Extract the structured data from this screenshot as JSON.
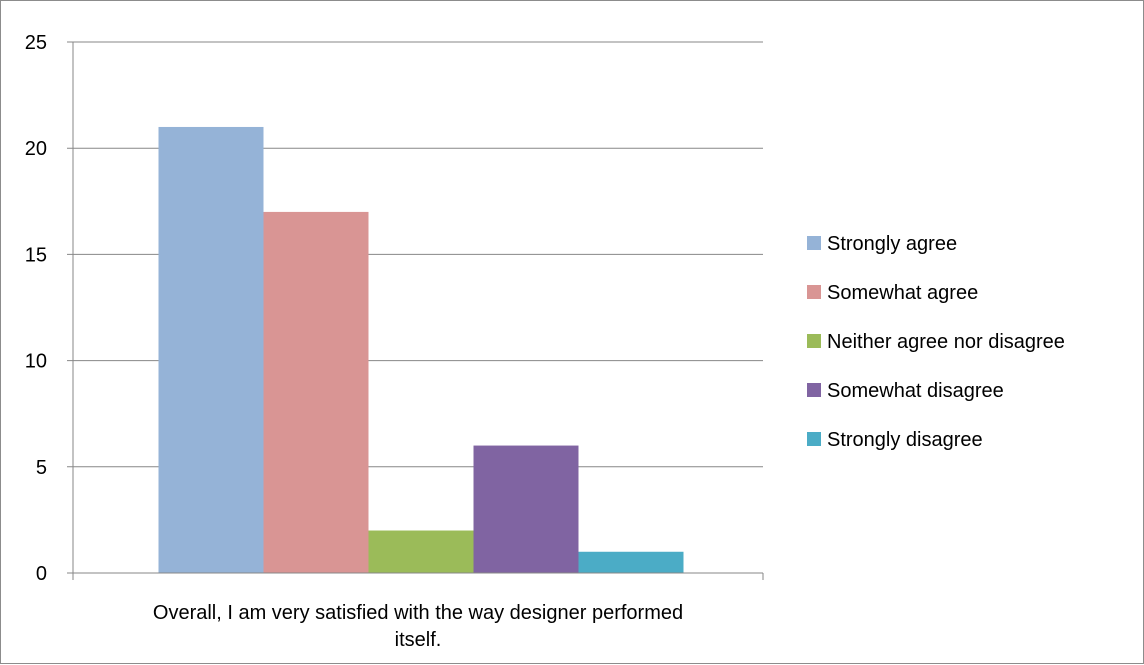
{
  "chart_data": {
    "type": "bar",
    "categories": [
      "Overall, I am very satisfied with the way designer performed itself."
    ],
    "category_label_lines": [
      "Overall, I am very satisfied with the way designer performed",
      "itself."
    ],
    "series": [
      {
        "name": "Strongly agree",
        "color": "#95b3d7",
        "values": [
          21
        ]
      },
      {
        "name": "Somewhat agree",
        "color": "#d99594",
        "values": [
          17
        ]
      },
      {
        "name": "Neither agree nor disagree",
        "color": "#9bbb59",
        "values": [
          2
        ]
      },
      {
        "name": "Somewhat disagree",
        "color": "#8064a2",
        "values": [
          6
        ]
      },
      {
        "name": "Strongly disagree",
        "color": "#4bacc6",
        "values": [
          1
        ]
      }
    ],
    "yticks": [
      "0",
      "5",
      "10",
      "15",
      "20",
      "25"
    ],
    "ylim": [
      0,
      25
    ],
    "grid": true,
    "legend_position": "right"
  }
}
